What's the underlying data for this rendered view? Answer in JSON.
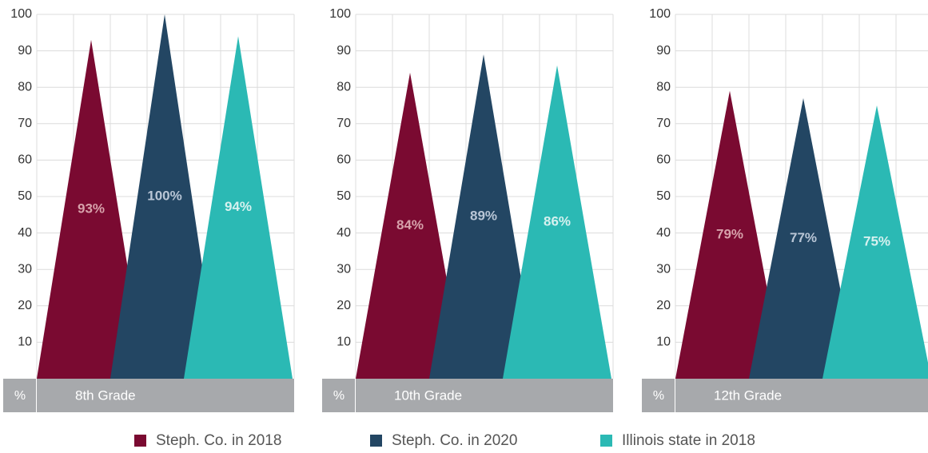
{
  "chart_data": {
    "type": "bar",
    "y_label": "%",
    "categories": [
      "8th Grade",
      "10th Grade",
      "12th Grade"
    ],
    "ylim": [
      0,
      100
    ],
    "yticks": [
      10,
      20,
      30,
      40,
      50,
      60,
      70,
      80,
      90,
      100
    ],
    "grid": true,
    "series": [
      {
        "name": "Steph. Co. in 2018",
        "color": "#7a0a31",
        "values": [
          93,
          84,
          79
        ],
        "value_labels": [
          "93%",
          "84%",
          "79%"
        ]
      },
      {
        "name": "Steph. Co. in 2020",
        "color": "#234663",
        "values": [
          100,
          89,
          77
        ],
        "value_labels": [
          "100%",
          "89%",
          "77%"
        ]
      },
      {
        "name": "Illinois state in 2018",
        "color": "#2bb9b4",
        "values": [
          94,
          86,
          75
        ],
        "value_labels": [
          "94%",
          "86%",
          "75%"
        ]
      }
    ]
  }
}
